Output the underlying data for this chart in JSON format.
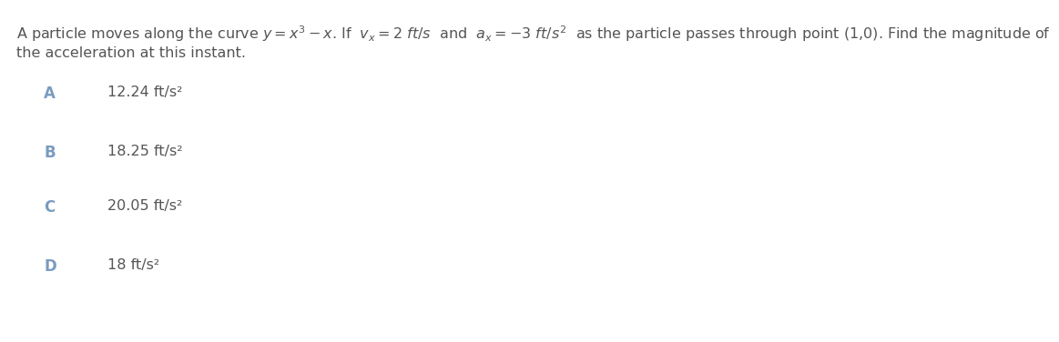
{
  "line1": "A particle moves along the curve $y = x^3 - x$. If  $v_x = 2\\ ft/s$  and  $a_x = -3\\ ft/s^2$  as the particle passes through point (1,0). Find the magnitude of",
  "line2": "the acceleration at this instant.",
  "options": [
    {
      "label": "A",
      "text": "12.24 ft/s²"
    },
    {
      "label": "B",
      "text": "18.25 ft/s²"
    },
    {
      "label": "C",
      "text": "20.05 ft/s²"
    },
    {
      "label": "D",
      "text": "18 ft/s²"
    }
  ],
  "text_color": "#555555",
  "label_color": "#7a9bbf",
  "background_color": "#ffffff",
  "font_size": 11.5,
  "label_font_size": 12
}
